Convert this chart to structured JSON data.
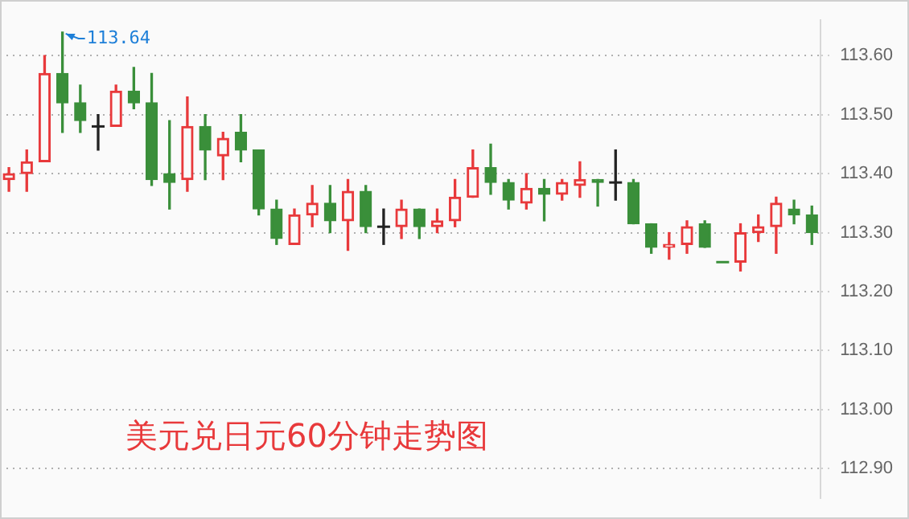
{
  "chart_data": {
    "type": "candlestick",
    "title": "美元兑日元60分钟走势图",
    "categories": [
      null,
      null,
      null,
      null,
      null,
      null,
      null,
      null,
      null,
      null,
      null,
      null,
      null,
      null,
      null,
      null,
      null,
      null,
      null,
      null,
      null,
      null,
      null,
      null,
      null,
      null,
      null,
      null,
      null,
      null,
      null,
      null,
      null,
      null,
      null,
      null,
      null,
      null,
      null,
      null,
      null,
      null,
      null,
      null,
      null,
      null
    ],
    "ohlc": [
      [
        113.39,
        113.41,
        113.37,
        113.4
      ],
      [
        113.4,
        113.44,
        113.37,
        113.42
      ],
      [
        113.42,
        113.6,
        113.42,
        113.57
      ],
      [
        113.57,
        113.64,
        113.47,
        113.52
      ],
      [
        113.52,
        113.55,
        113.47,
        113.49
      ],
      [
        113.48,
        113.5,
        113.44,
        113.48
      ],
      [
        113.48,
        113.55,
        113.48,
        113.54
      ],
      [
        113.54,
        113.58,
        113.51,
        113.52
      ],
      [
        113.52,
        113.57,
        113.38,
        113.39
      ],
      [
        113.4,
        113.49,
        113.34,
        113.385
      ],
      [
        113.39,
        113.53,
        113.37,
        113.48
      ],
      [
        113.48,
        113.5,
        113.39,
        113.44
      ],
      [
        113.43,
        113.47,
        113.39,
        113.46
      ],
      [
        113.47,
        113.5,
        113.42,
        113.44
      ],
      [
        113.44,
        113.44,
        113.33,
        113.34
      ],
      [
        113.34,
        113.355,
        113.28,
        113.29
      ],
      [
        113.28,
        113.34,
        113.28,
        113.33
      ],
      [
        113.33,
        113.38,
        113.31,
        113.35
      ],
      [
        113.35,
        113.38,
        113.3,
        113.32
      ],
      [
        113.32,
        113.39,
        113.27,
        113.37
      ],
      [
        113.37,
        113.38,
        113.3,
        113.31
      ],
      [
        113.31,
        113.34,
        113.28,
        113.31
      ],
      [
        113.31,
        113.355,
        113.29,
        113.34
      ],
      [
        113.34,
        113.34,
        113.29,
        113.31
      ],
      [
        113.31,
        113.34,
        113.3,
        113.32
      ],
      [
        113.32,
        113.39,
        113.31,
        113.36
      ],
      [
        113.36,
        113.44,
        113.36,
        113.41
      ],
      [
        113.41,
        113.45,
        113.365,
        113.385
      ],
      [
        113.385,
        113.39,
        113.34,
        113.355
      ],
      [
        113.35,
        113.4,
        113.34,
        113.375
      ],
      [
        113.375,
        113.39,
        113.32,
        113.365
      ],
      [
        113.365,
        113.39,
        113.355,
        113.385
      ],
      [
        113.38,
        113.42,
        113.36,
        113.39
      ],
      [
        113.39,
        113.39,
        113.345,
        113.385
      ],
      [
        113.385,
        113.44,
        113.355,
        113.385
      ],
      [
        113.385,
        113.39,
        113.315,
        113.315
      ],
      [
        113.315,
        113.315,
        113.265,
        113.275
      ],
      [
        113.275,
        113.3,
        113.255,
        113.28
      ],
      [
        113.28,
        113.32,
        113.265,
        113.31
      ],
      [
        113.315,
        113.32,
        113.275,
        113.275
      ],
      [
        113.25,
        113.25,
        113.25,
        113.25
      ],
      [
        113.25,
        113.315,
        113.235,
        113.3
      ],
      [
        113.3,
        113.33,
        113.285,
        113.31
      ],
      [
        113.31,
        113.36,
        113.265,
        113.35
      ],
      [
        113.34,
        113.355,
        113.315,
        113.33
      ],
      [
        113.33,
        113.345,
        113.28,
        113.3
      ]
    ],
    "colors": [
      "#e8393b",
      "#e8393b",
      "#e8393b",
      "#3a8f3a",
      "#3a8f3a",
      "#222222",
      "#e8393b",
      "#3a8f3a",
      "#3a8f3a",
      "#3a8f3a",
      "#e8393b",
      "#3a8f3a",
      "#e8393b",
      "#3a8f3a",
      "#3a8f3a",
      "#3a8f3a",
      "#e8393b",
      "#e8393b",
      "#3a8f3a",
      "#e8393b",
      "#3a8f3a",
      "#222222",
      "#e8393b",
      "#3a8f3a",
      "#e8393b",
      "#e8393b",
      "#e8393b",
      "#3a8f3a",
      "#3a8f3a",
      "#e8393b",
      "#3a8f3a",
      "#e8393b",
      "#e8393b",
      "#3a8f3a",
      "#222222",
      "#3a8f3a",
      "#3a8f3a",
      "#e8393b",
      "#e8393b",
      "#3a8f3a",
      "#3a8f3a",
      "#e8393b",
      "#e8393b",
      "#e8393b",
      "#3a8f3a",
      "#3a8f3a"
    ],
    "ylim": [
      112.85,
      113.66
    ],
    "yticks": [
      {
        "value": 112.9,
        "label": "112.90"
      },
      {
        "value": 113.0,
        "label": "113.00"
      },
      {
        "value": 113.1,
        "label": "113.10"
      },
      {
        "value": 113.2,
        "label": "113.20"
      },
      {
        "value": 113.3,
        "label": "113.30"
      },
      {
        "value": 113.4,
        "label": "113.40"
      },
      {
        "value": 113.5,
        "label": "113.50"
      },
      {
        "value": 113.6,
        "label": "113.60"
      }
    ],
    "grid": "y",
    "tick_labels": "y",
    "legend": false,
    "annotations": [
      "113.64"
    ]
  }
}
